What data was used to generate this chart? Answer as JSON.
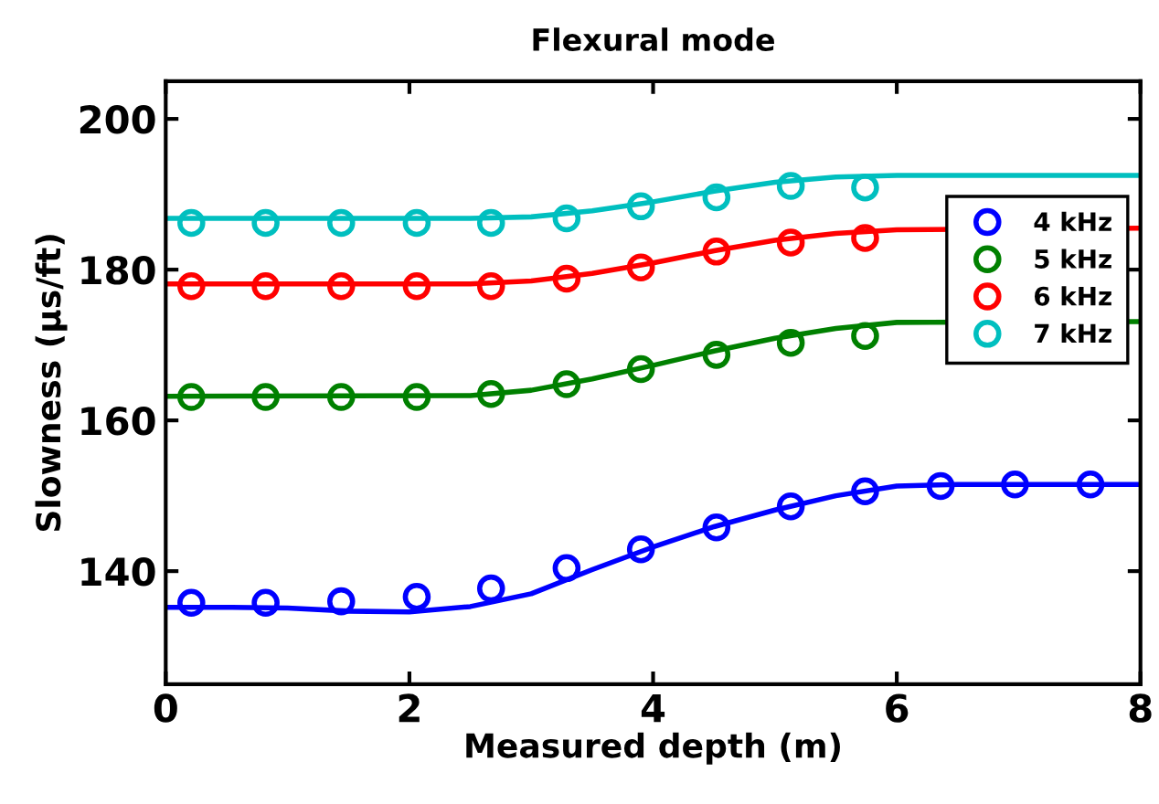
{
  "chart_data": {
    "type": "scatter",
    "title": "Flexural mode",
    "xlabel": "Measured depth (m)",
    "ylabel": "Slowness (µs/ft)",
    "xlim": [
      0,
      8
    ],
    "xticks": [
      0,
      2,
      4,
      6,
      8
    ],
    "ylim": [
      125,
      205
    ],
    "yticks": [
      140,
      160,
      180,
      200
    ],
    "grid": false,
    "legend": "top right",
    "x": [
      0.21,
      0.82,
      1.44,
      2.06,
      2.67,
      3.29,
      3.9,
      4.52,
      5.13,
      5.74,
      6.36,
      6.97,
      7.59
    ],
    "series": [
      {
        "name": "4 kHz",
        "color": "#0000ff",
        "marker": "circle",
        "values": [
          135.8,
          135.8,
          136.0,
          136.6,
          137.7,
          140.4,
          142.9,
          145.8,
          148.6,
          150.6,
          151.3,
          151.5,
          151.5
        ]
      },
      {
        "name": "5 kHz",
        "color": "#008000",
        "marker": "circle",
        "values": [
          163.1,
          163.1,
          163.1,
          163.1,
          163.5,
          164.8,
          166.8,
          168.7,
          170.3,
          171.2,
          null,
          null,
          null
        ]
      },
      {
        "name": "6 kHz",
        "color": "#ff0000",
        "marker": "circle",
        "values": [
          177.8,
          177.8,
          177.8,
          177.8,
          177.8,
          178.8,
          180.3,
          182.4,
          183.6,
          184.2,
          null,
          null,
          null
        ]
      },
      {
        "name": "7 kHz",
        "color": "#00bfbf",
        "marker": "circle",
        "values": [
          186.2,
          186.2,
          186.2,
          186.2,
          186.2,
          186.8,
          188.4,
          189.6,
          191.1,
          190.9,
          null,
          null,
          null
        ]
      },
      {
        "type": "line",
        "color": "#0000ff",
        "x": [
          0,
          0.5,
          1,
          1.5,
          2,
          2.5,
          3,
          3.5,
          4,
          4.5,
          5,
          5.5,
          6,
          6.5,
          7,
          8
        ],
        "values": [
          135.2,
          135.2,
          135.1,
          134.7,
          134.6,
          135.3,
          137.0,
          140.2,
          143.2,
          145.9,
          148.1,
          150.0,
          151.3,
          151.5,
          151.5,
          151.5
        ]
      },
      {
        "type": "line",
        "color": "#008000",
        "x": [
          0,
          2.5,
          3,
          3.5,
          4,
          4.5,
          5,
          5.5,
          6,
          8
        ],
        "values": [
          163.2,
          163.3,
          164.0,
          165.5,
          167.3,
          169.2,
          170.9,
          172.2,
          173.0,
          173.1
        ]
      },
      {
        "type": "line",
        "color": "#ff0000",
        "x": [
          0,
          2.5,
          3,
          3.5,
          4,
          4.5,
          5,
          5.5,
          6,
          8
        ],
        "values": [
          178.1,
          178.1,
          178.5,
          179.5,
          180.9,
          182.5,
          183.9,
          184.8,
          185.3,
          185.5
        ]
      },
      {
        "type": "line",
        "color": "#00bfbf",
        "x": [
          0,
          2.5,
          3,
          3.5,
          4,
          4.5,
          5,
          5.5,
          6,
          8
        ],
        "values": [
          186.8,
          186.8,
          187.0,
          187.8,
          189.0,
          190.4,
          191.6,
          192.3,
          192.5,
          192.5
        ]
      }
    ]
  }
}
